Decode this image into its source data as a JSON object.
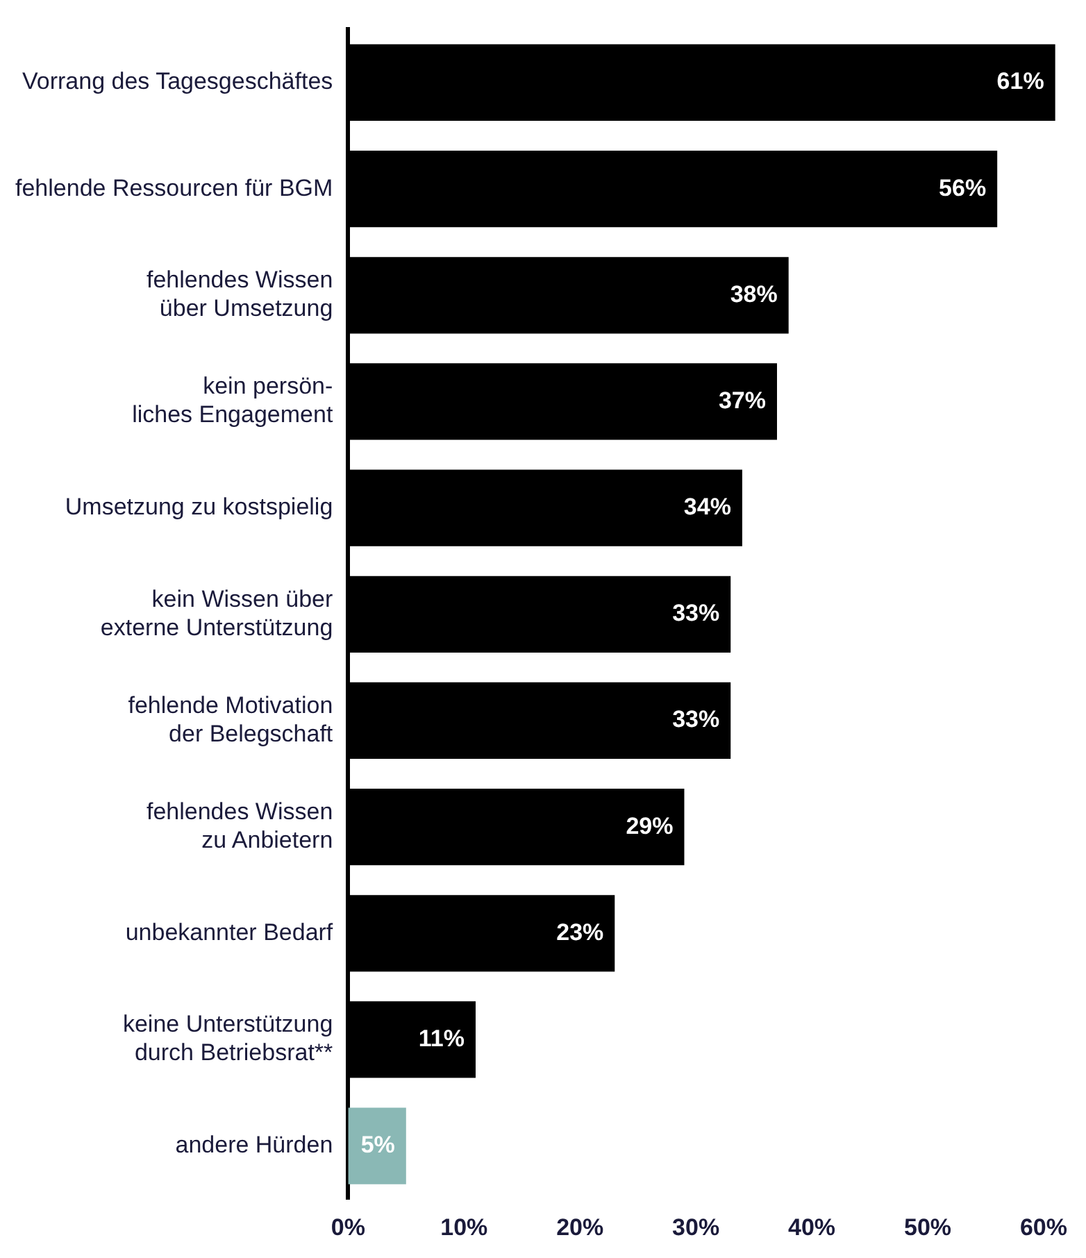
{
  "chart_data": {
    "type": "bar",
    "orientation": "horizontal",
    "categories": [
      "Vorrang des Tagesgeschäftes",
      "fehlende Ressourcen für BGM",
      "fehlendes Wissen\nüber Umsetzung",
      "kein persön-\nliches Engagement",
      "Umsetzung zu kostspielig",
      "kein Wissen über\nexterne Unterstützung",
      "fehlende Motivation\nder Belegschaft",
      "fehlendes Wissen\nzu Anbietern",
      "unbekannter Bedarf",
      "keine Unterstützung\ndurch Betriebsrat**",
      "andere Hürden"
    ],
    "values": [
      61,
      56,
      38,
      37,
      34,
      33,
      33,
      29,
      23,
      11,
      5
    ],
    "colors": [
      "#000000",
      "#000000",
      "#000000",
      "#000000",
      "#000000",
      "#000000",
      "#000000",
      "#000000",
      "#000000",
      "#000000",
      "#8ab8b5"
    ],
    "value_labels": [
      "61%",
      "56%",
      "38%",
      "37%",
      "34%",
      "33%",
      "33%",
      "29%",
      "23%",
      "11%",
      "5%"
    ],
    "xlim": [
      0,
      61.5
    ],
    "xticks": [
      {
        "value": 0,
        "label": "0%"
      },
      {
        "value": 10,
        "label": "10%"
      },
      {
        "value": 20,
        "label": "20%"
      },
      {
        "value": 30,
        "label": "30%"
      },
      {
        "value": 40,
        "label": "40%"
      },
      {
        "value": 50,
        "label": "50%"
      },
      {
        "value": 60,
        "label": "60%"
      }
    ],
    "grid": false,
    "legend": false
  }
}
